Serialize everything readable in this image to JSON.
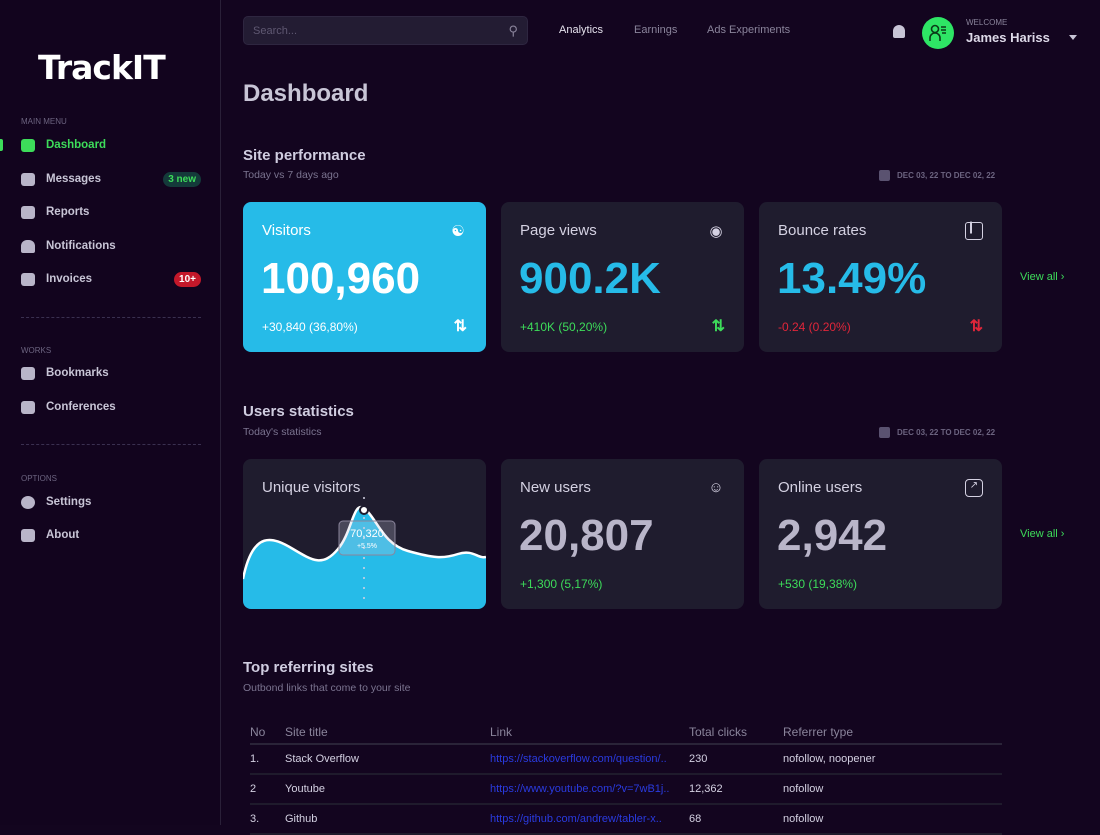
{
  "app": {
    "logo": "TrackIT"
  },
  "sidebar": {
    "sections": [
      {
        "label": "MAIN MENU"
      },
      {
        "label": "WORKS"
      },
      {
        "label": "OPTIONS"
      }
    ],
    "items": [
      {
        "label": "Dashboard",
        "icon": "grid-icon",
        "active": true
      },
      {
        "label": "Messages",
        "icon": "envelope-icon",
        "badge": "3 new"
      },
      {
        "label": "Reports",
        "icon": "file-icon"
      },
      {
        "label": "Notifications",
        "icon": "bell-icon"
      },
      {
        "label": "Invoices",
        "icon": "wallet-icon",
        "badge": "10+"
      },
      {
        "label": "Bookmarks",
        "icon": "bookmark-icon"
      },
      {
        "label": "Conferences",
        "icon": "video-icon"
      },
      {
        "label": "Settings",
        "icon": "gear-icon"
      },
      {
        "label": "About",
        "icon": "info-icon"
      }
    ]
  },
  "header": {
    "search_placeholder": "Search...",
    "tabs": [
      "Analytics",
      "Earnings",
      "Ads Experiments"
    ],
    "active_tab": "Analytics",
    "welcome": "WELCOME",
    "user": "James Hariss"
  },
  "page": {
    "title": "Dashboard"
  },
  "site_performance": {
    "title": "Site performance",
    "subtitle": "Today vs 7 days ago",
    "date_range": "DEC 03, 22 TO DEC 02, 22",
    "view_all": "View all ›",
    "cards": [
      {
        "title": "Visitors",
        "value": "100,960",
        "change": "+30,840 (36,80%)",
        "trend": "up-down"
      },
      {
        "title": "Page views",
        "value": "900.2K",
        "change": "+410K (50,20%)",
        "trend": "up"
      },
      {
        "title": "Bounce rates",
        "value": "13.49%",
        "change": "-0.24 (0.20%)",
        "trend": "down"
      }
    ]
  },
  "users_statistics": {
    "title": "Users statistics",
    "subtitle": "Today's statistics",
    "date_range": "DEC 03, 22 TO DEC 02, 22",
    "view_all": "View all ›",
    "unique_visitors": {
      "title": "Unique visitors",
      "tooltip_value": "70,320",
      "tooltip_change": "+5.5%"
    },
    "cards": [
      {
        "title": "New users",
        "value": "20,807",
        "change": "+1,300 (5,17%)"
      },
      {
        "title": "Online users",
        "value": "2,942",
        "change": "+530 (19,38%)"
      }
    ]
  },
  "referring": {
    "title": "Top referring sites",
    "subtitle": "Outbond links that come to your site",
    "columns": [
      "No",
      "Site title",
      "Link",
      "Total clicks",
      "Referrer type"
    ],
    "rows": [
      [
        "1.",
        "Stack Overflow",
        "https://stackoverflow.com/question/..",
        "230",
        "nofollow, noopener"
      ],
      [
        "2",
        "Youtube",
        "https://www.youtube.com/?v=7wB1j..",
        "12,362",
        "nofollow"
      ],
      [
        "3.",
        "Github",
        "https://github.com/andrew/tabler-x..",
        "68",
        "nofollow"
      ]
    ]
  },
  "colors": {
    "accent": "#3ddc5a",
    "highlight": "#26bbe8",
    "danger": "#e0263a",
    "background": "#13051f",
    "card": "#1f1c2e"
  }
}
